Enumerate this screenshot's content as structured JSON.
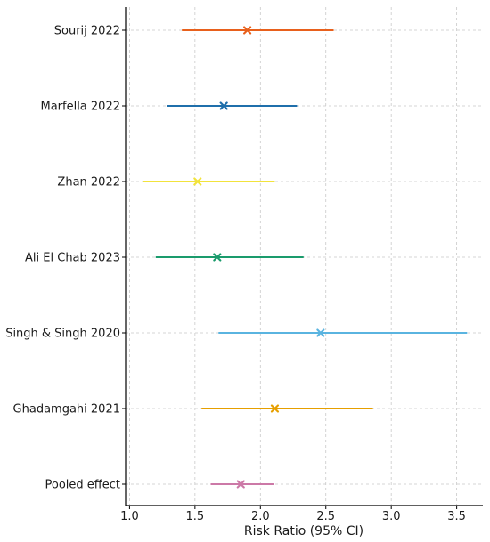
{
  "chart_data": {
    "type": "forest",
    "title": "",
    "xlabel": "Risk Ratio (95% CI)",
    "ylabel": "",
    "xlim": [
      0.97,
      3.7
    ],
    "xticks": [
      1.0,
      1.5,
      2.0,
      2.5,
      3.0,
      3.5
    ],
    "xtick_labels": [
      "1.0",
      "1.5",
      "2.0",
      "2.5",
      "3.0",
      "3.5"
    ],
    "grid": true,
    "marker": "x",
    "studies": [
      {
        "label": "Sourij 2022",
        "estimate": 1.9,
        "lower": 1.4,
        "upper": 2.56,
        "color": "#e8601c"
      },
      {
        "label": "Marfella 2022",
        "estimate": 1.72,
        "lower": 1.29,
        "upper": 2.28,
        "color": "#1f6fab"
      },
      {
        "label": "Zhan 2022",
        "estimate": 1.52,
        "lower": 1.1,
        "upper": 2.11,
        "color": "#f2e33c"
      },
      {
        "label": "Ali El Chab 2023",
        "estimate": 1.67,
        "lower": 1.2,
        "upper": 2.33,
        "color": "#1a9b6c"
      },
      {
        "label": "Singh & Singh 2020",
        "estimate": 2.46,
        "lower": 1.68,
        "upper": 3.58,
        "color": "#5ab4e0"
      },
      {
        "label": "Ghadamgahi 2021",
        "estimate": 2.11,
        "lower": 1.55,
        "upper": 2.86,
        "color": "#e69f00"
      },
      {
        "label": "Pooled effect",
        "estimate": 1.85,
        "lower": 1.62,
        "upper": 2.1,
        "color": "#cc79a7"
      }
    ]
  }
}
